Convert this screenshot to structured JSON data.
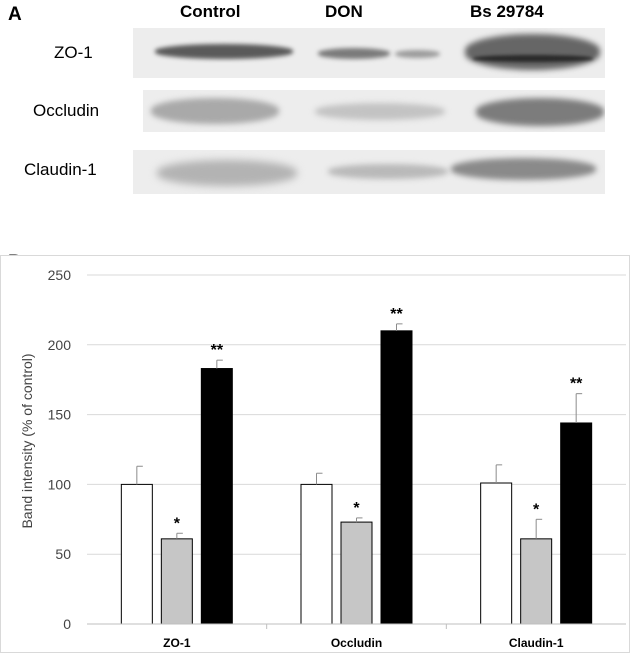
{
  "panel_a": {
    "letter": "A",
    "lanes": [
      "Control",
      "DON",
      "Bs 29784"
    ],
    "proteins": [
      "ZO-1",
      "Occludin",
      "Claudin-1"
    ]
  },
  "panel_b": {
    "letter": "B"
  },
  "chart_data": {
    "type": "bar",
    "categories": [
      "ZO-1",
      "Occludin",
      "Claudin-1"
    ],
    "ylabel": "Band intensity (% of control)",
    "ylim": [
      0,
      250
    ],
    "yticks": [
      0,
      50,
      100,
      150,
      200,
      250
    ],
    "grid": true,
    "series": [
      {
        "fill": "#ffffff",
        "values": [
          100,
          100,
          101
        ],
        "errors": [
          13,
          8,
          13
        ],
        "sig": [
          "",
          "",
          ""
        ]
      },
      {
        "fill": "#c6c6c6",
        "values": [
          61,
          73,
          61
        ],
        "errors": [
          4,
          3,
          14
        ],
        "sig": [
          "*",
          "*",
          "*"
        ]
      },
      {
        "fill": "#000000",
        "values": [
          183,
          210,
          144
        ],
        "errors": [
          6,
          5,
          21
        ],
        "sig": [
          "**",
          "**",
          "**"
        ]
      }
    ]
  }
}
